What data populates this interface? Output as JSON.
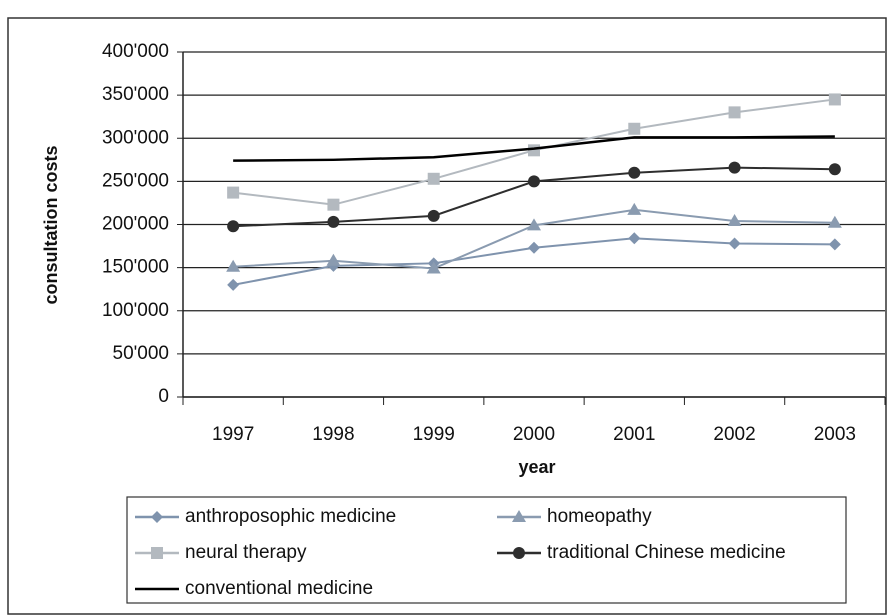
{
  "chart_data": {
    "type": "line",
    "y_label": "consultation costs",
    "x_label": "year",
    "categories": [
      "1997",
      "1998",
      "1999",
      "2000",
      "2001",
      "2002",
      "2003"
    ],
    "series": [
      {
        "name": "anthroposophic medicine",
        "color": "#7f93ad",
        "marker": "diamond",
        "values": [
          130000,
          152000,
          155000,
          173000,
          184000,
          178000,
          177000
        ]
      },
      {
        "name": "homeopathy",
        "color": "#8a9bb0",
        "marker": "triangle",
        "values": [
          151000,
          158000,
          149000,
          199000,
          217000,
          204000,
          202000
        ]
      },
      {
        "name": "neural therapy",
        "color": "#b3b9bf",
        "marker": "square",
        "values": [
          237000,
          223000,
          253000,
          286000,
          311000,
          330000,
          345000
        ]
      },
      {
        "name": "traditional Chinese medicine",
        "color": "#2e2e2e",
        "marker": "circle",
        "values": [
          198000,
          203000,
          210000,
          250000,
          260000,
          266000,
          264000
        ]
      },
      {
        "name": "conventional medicine",
        "color": "#000000",
        "marker": null,
        "values": [
          274000,
          275000,
          278000,
          288000,
          301000,
          301000,
          302000
        ]
      }
    ],
    "ylim": [
      0,
      400000
    ],
    "yticks": [
      0,
      {
        "value": 50000,
        "label": "50'000"
      },
      {
        "value": 100000,
        "label": "100'000"
      },
      {
        "value": 150000,
        "label": "150'000"
      },
      {
        "value": 200000,
        "label": "200'000"
      },
      {
        "value": 250000,
        "label": "250'000"
      },
      {
        "value": 300000,
        "label": "300'000"
      },
      {
        "value": 350000,
        "label": "350'000"
      },
      {
        "value": 400000,
        "label": "400'000"
      }
    ],
    "grid": true
  }
}
